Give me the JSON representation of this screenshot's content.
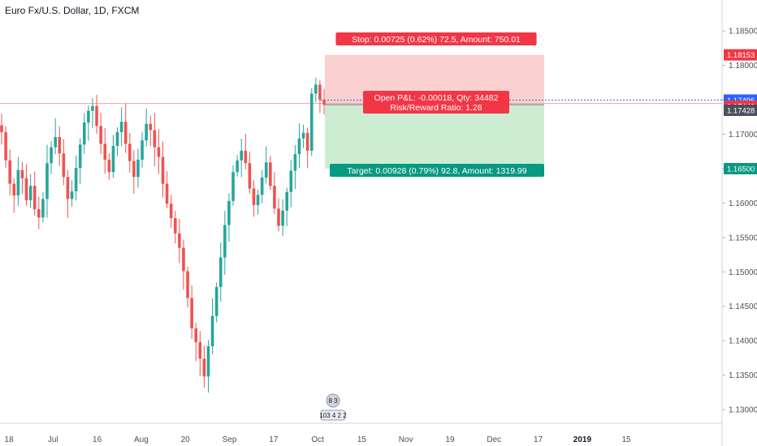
{
  "header": {
    "symbol_title": "Euro Fx/U.S. Dollar, 1D, FXCM"
  },
  "colors": {
    "up": "#26a69a",
    "down": "#ef5350",
    "stop_zone": "#f9c9c8",
    "target_zone": "#c8ebcd",
    "stop_label": "#f23645",
    "target_label": "#089981",
    "pnl_label": "#f23645",
    "price_line": "#2962ff"
  },
  "chart_data": {
    "type": "candlestick",
    "symbol": "Euro Fx/U.S. Dollar",
    "timeframe": "1D",
    "source": "FXCM",
    "x_ticks": [
      "18",
      "Jul",
      "16",
      "Aug",
      "20",
      "Sep",
      "17",
      "Oct",
      "15",
      "Nov",
      "19",
      "Dec",
      "17",
      "2019",
      "15"
    ],
    "y_ticks": [
      "1.18500",
      "1.18000",
      "1.17500",
      "1.17000",
      "1.16500",
      "1.16000",
      "1.15500",
      "1.15000",
      "1.14500",
      "1.14000",
      "1.13500",
      "1.13000"
    ],
    "ylim": [
      1.128,
      1.1895
    ],
    "closes_approx": [
      1.1703,
      1.1662,
      1.1628,
      1.1611,
      1.1648,
      1.1636,
      1.1604,
      1.1625,
      1.1591,
      1.1579,
      1.1606,
      1.1658,
      1.1681,
      1.1696,
      1.1672,
      1.1638,
      1.1606,
      1.1617,
      1.1651,
      1.1685,
      1.1717,
      1.1734,
      1.1741,
      1.1712,
      1.1686,
      1.1663,
      1.1645,
      1.1683,
      1.1703,
      1.1718,
      1.1686,
      1.1661,
      1.1638,
      1.1663,
      1.1691,
      1.1715,
      1.1706,
      1.1681,
      1.1667,
      1.1628,
      1.1599,
      1.1578,
      1.1556,
      1.1535,
      1.1501,
      1.1462,
      1.1418,
      1.1398,
      1.1374,
      1.1348,
      1.1392,
      1.1436,
      1.1478,
      1.1521,
      1.1568,
      1.1603,
      1.1645,
      1.1662,
      1.1676,
      1.1658,
      1.1621,
      1.1597,
      1.1612,
      1.1637,
      1.1659,
      1.1625,
      1.1592,
      1.1567,
      1.1589,
      1.1616,
      1.1647,
      1.1671,
      1.1694,
      1.1702,
      1.1676,
      1.1759,
      1.1772,
      1.175,
      1.1743
    ],
    "position": {
      "entry": 1.17428,
      "stop": 1.18153,
      "target": 1.165,
      "current": 1.17496,
      "open_pnl_price": 1.17446
    },
    "price_labels": {
      "stop": "1.18153",
      "current": "1.17496",
      "open_pnl": "1.17446",
      "entry": "1.17428",
      "target": "1.16500"
    },
    "annotations": {
      "stop": "Stop: 0.00725 (0.62%) 72.5, Amount: 750.01",
      "pnl_line1": "Open P&L: -0.00018, Qty: 34482",
      "pnl_line2": "Risk/Reward Ratio: 1.28",
      "target": "Target: 0.00928 (0.79%) 92.8, Amount: 1319.99"
    },
    "events_badge": {
      "top": "8 3",
      "bottom": "103 4 2 2"
    },
    "grid": true
  }
}
